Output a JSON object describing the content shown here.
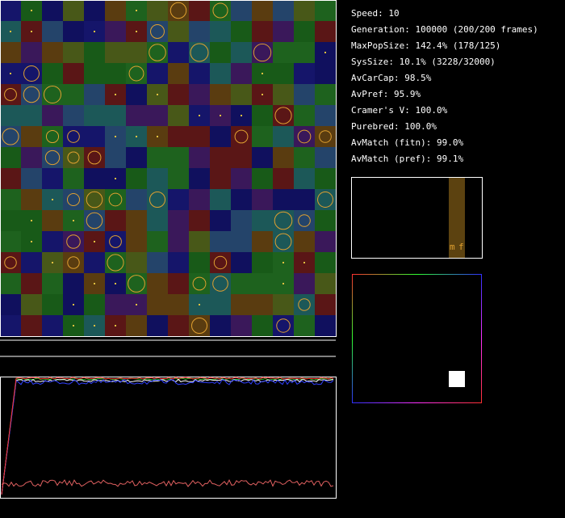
{
  "stats": [
    "Speed: 10",
    "Generation: 100000 (200/200 frames)",
    "MaxPopSize: 142.4% (178/125)",
    "SysSize: 10.1% (3228/32000)",
    "AvCarCap: 98.5%",
    "AvPref: 95.9%",
    "Cramer's V: 100.0%",
    "Purebred: 100.0%",
    "AvMatch (fitn): 99.0%",
    "AvMatch (pref): 99.1%"
  ],
  "histogram": {
    "labels": [
      "m",
      "f"
    ]
  }
}
